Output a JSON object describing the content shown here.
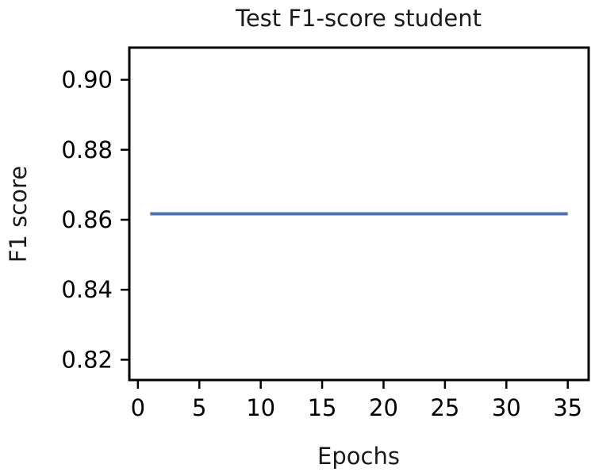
{
  "chart_data": {
    "type": "line",
    "title": "Test F1-score student",
    "xlabel": "Epochs",
    "ylabel": "F1 score",
    "xlim": [
      -0.7,
      36.7
    ],
    "ylim": [
      0.8142,
      0.9092
    ],
    "xticks": [
      0,
      5,
      10,
      15,
      20,
      25,
      30,
      35
    ],
    "xtick_labels": [
      "0",
      "5",
      "10",
      "15",
      "20",
      "25",
      "30",
      "35"
    ],
    "yticks": [
      0.82,
      0.84,
      0.86,
      0.88,
      0.9
    ],
    "ytick_labels": [
      "0.82",
      "0.84",
      "0.86",
      "0.88",
      "0.90"
    ],
    "grid": false,
    "series": [
      {
        "color": "#4c72b0",
        "x": [
          1,
          2,
          3,
          4,
          5,
          6,
          7,
          8,
          9,
          10,
          11,
          12,
          13,
          14,
          15,
          16,
          17,
          18,
          19,
          20,
          21,
          22,
          23,
          24,
          25,
          26,
          27,
          28,
          29,
          30,
          31,
          32,
          33,
          34,
          35
        ],
        "y": [
          0.8617,
          0.8617,
          0.8617,
          0.8617,
          0.8617,
          0.8617,
          0.8617,
          0.8617,
          0.8617,
          0.8617,
          0.8617,
          0.8617,
          0.8617,
          0.8617,
          0.8617,
          0.8617,
          0.8617,
          0.8617,
          0.8617,
          0.8617,
          0.8617,
          0.8617,
          0.8617,
          0.8617,
          0.8617,
          0.8617,
          0.8617,
          0.8617,
          0.8617,
          0.8617,
          0.8617,
          0.8617,
          0.8617,
          0.8617,
          0.8617
        ]
      }
    ]
  }
}
